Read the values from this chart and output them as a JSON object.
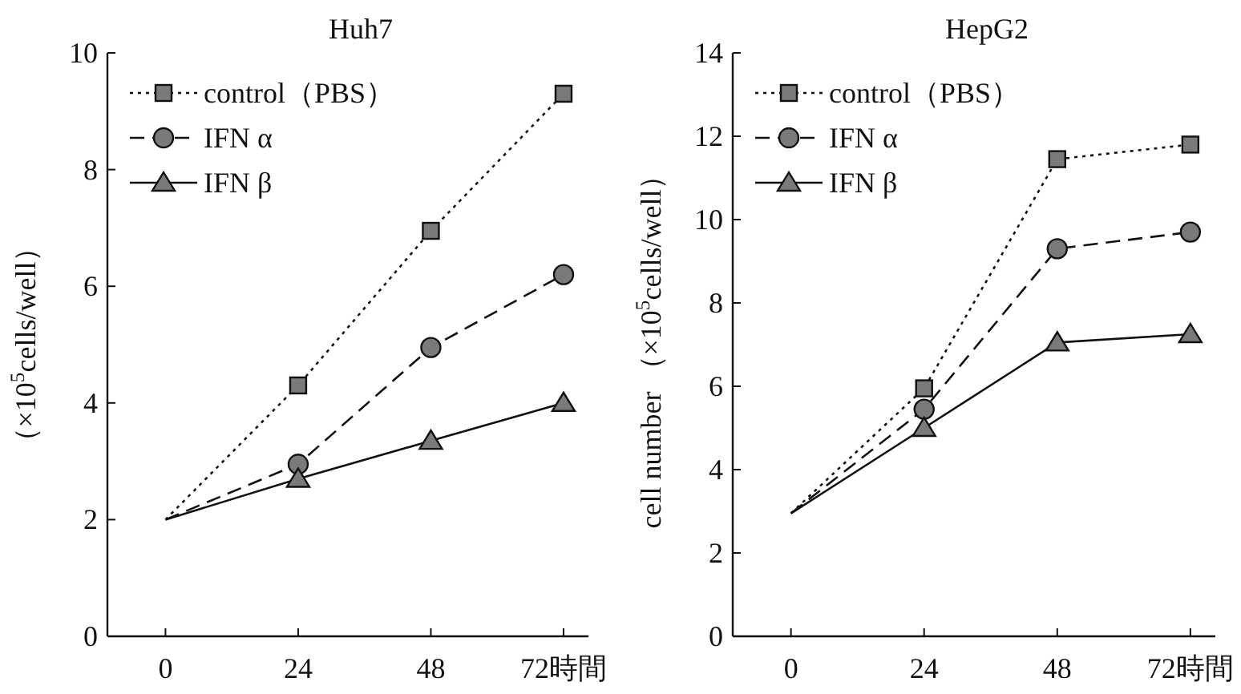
{
  "chart_data": [
    {
      "type": "line",
      "title": "Huh7",
      "ylabel": "（×10$^{5}$cells/well）",
      "x": [
        0,
        24,
        48,
        72
      ],
      "xlim": [
        -10.5,
        76.5
      ],
      "ylim": [
        0,
        10
      ],
      "xticks": [
        0,
        24,
        48,
        {
          "value": 72,
          "label": "72時間"
        }
      ],
      "yticks": [
        0,
        2,
        4,
        6,
        8,
        10
      ],
      "legend": "top left",
      "grid": false,
      "series": [
        {
          "name": "control（PBS）",
          "color": "#7a7a7a",
          "marker": "square",
          "line_style": "dotted",
          "values": [
            2,
            4.3,
            6.95,
            9.3
          ]
        },
        {
          "name": "IFN α",
          "color": "#7a7a7a",
          "marker": "circle",
          "line_style": "dashed",
          "values": [
            2,
            2.95,
            4.95,
            6.2
          ]
        },
        {
          "name": "IFN β",
          "color": "#7a7a7a",
          "marker": "triangle",
          "line_style": "solid",
          "values": [
            2,
            2.7,
            3.35,
            4
          ]
        }
      ]
    },
    {
      "type": "line",
      "title": "HepG2",
      "ylabel": "cell number （×10$^{5}$cells/well）",
      "x": [
        0,
        24,
        48,
        72
      ],
      "xlim": [
        -10.5,
        76.5
      ],
      "ylim": [
        0,
        14
      ],
      "xticks": [
        0,
        24,
        48,
        {
          "value": 72,
          "label": "72時間"
        }
      ],
      "yticks": [
        0,
        2,
        4,
        6,
        8,
        10,
        12,
        14
      ],
      "legend": "top left",
      "grid": false,
      "series": [
        {
          "name": "control（PBS）",
          "color": "#7a7a7a",
          "marker": "square",
          "line_style": "dotted",
          "values": [
            2.95,
            5.95,
            11.45,
            11.8
          ]
        },
        {
          "name": "IFN α",
          "color": "#7a7a7a",
          "marker": "circle",
          "line_style": "dashed",
          "values": [
            2.95,
            5.45,
            9.3,
            9.7
          ]
        },
        {
          "name": "IFN β",
          "color": "#7a7a7a",
          "marker": "triangle",
          "line_style": "solid",
          "values": [
            2.95,
            5.0,
            7.05,
            7.25
          ]
        }
      ]
    }
  ]
}
